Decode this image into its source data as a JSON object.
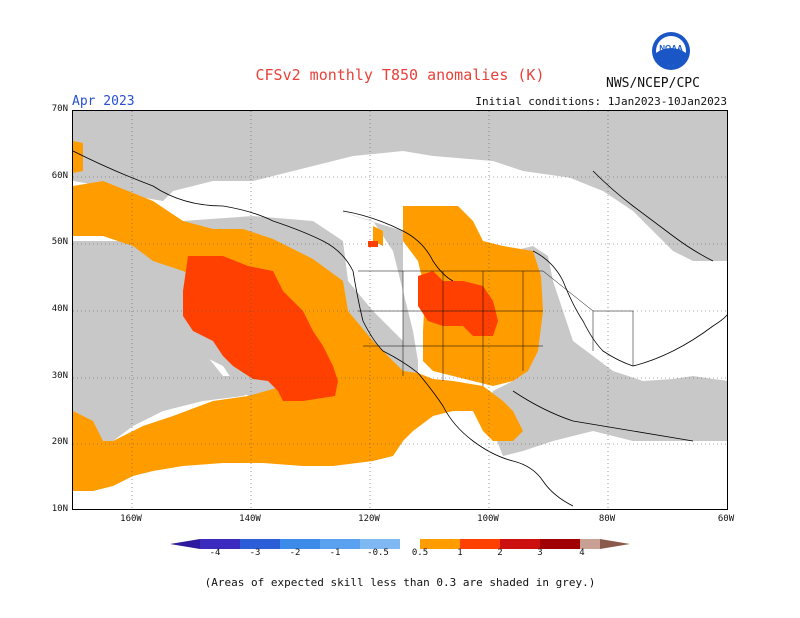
{
  "title": "CFSv2 monthly T850 anomalies (K)",
  "organization": "NWS/NCEP/CPC",
  "logo_text": "NOAA",
  "valid_month": "Apr 2023",
  "initial_conditions": "Initial conditions: 1Jan2023-10Jan2023",
  "footnote": "(Areas of expected skill less than 0.3 are shaded in grey.)",
  "lat_labels": [
    "70N",
    "60N",
    "50N",
    "40N",
    "30N",
    "20N",
    "10N"
  ],
  "lon_labels": [
    "160W",
    "140W",
    "120W",
    "100W",
    "80W",
    "60W"
  ],
  "colorbar_labels": [
    "-4",
    "-3",
    "-2",
    "-1",
    "-0.5",
    "0.5",
    "1",
    "2",
    "3",
    "4"
  ],
  "colors": {
    "skill_grey": "#c8c8c8",
    "anom_0_5_to_1": "#ff9c00",
    "anom_1_to_2": "#ff4000",
    "anom_2_to_3": "#ff1a1a",
    "neg_4": "#3b2bbf",
    "neg_3": "#2c5fd7",
    "neg_2": "#3d8be8",
    "neg_1": "#7fb8f2",
    "neutral": "#ffffff",
    "pos_3": "#b00000",
    "pos_4": "#c8a094",
    "pos_max": "#8c5a4a"
  }
}
